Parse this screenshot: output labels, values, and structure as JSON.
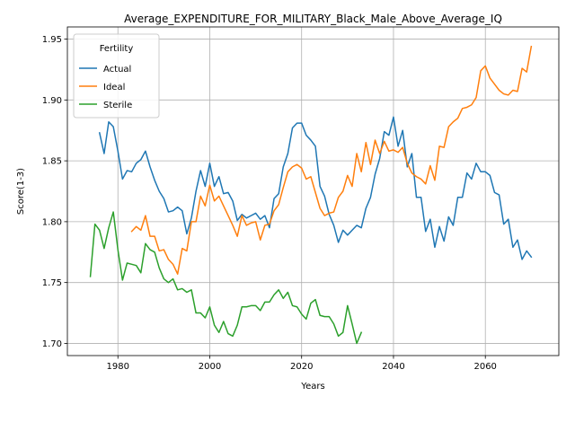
{
  "chart_data": {
    "type": "line",
    "title": "Average_EXPENDITURE_FOR_MILITARY_Black_Male_Above_Average_IQ",
    "xlabel": "Years",
    "ylabel": "Score(1-3)",
    "xlim": [
      1969,
      2076
    ],
    "ylim": [
      1.69,
      1.96
    ],
    "xticks": [
      1980,
      2000,
      2020,
      2040,
      2060
    ],
    "yticks": [
      1.7,
      1.75,
      1.8,
      1.85,
      1.9,
      1.95
    ],
    "ytick_labels": [
      "1.70",
      "1.75",
      "1.80",
      "1.85",
      "1.90",
      "1.95"
    ],
    "grid": true,
    "legend": {
      "title": "Fertility",
      "placement": "top-left"
    },
    "series": [
      {
        "name": "Actual",
        "color": "#1f77b4",
        "x": [
          1976,
          1977,
          1978,
          1979,
          1980,
          1981,
          1982,
          1983,
          1984,
          1985,
          1986,
          1987,
          1988,
          1989,
          1990,
          1991,
          1992,
          1993,
          1994,
          1995,
          1996,
          1997,
          1998,
          1999,
          2000,
          2001,
          2002,
          2003,
          2004,
          2005,
          2006,
          2007,
          2008,
          2009,
          2010,
          2011,
          2012,
          2013,
          2014,
          2015,
          2016,
          2017,
          2018,
          2019,
          2020,
          2021,
          2022,
          2023,
          2024,
          2025,
          2026,
          2027,
          2028,
          2029,
          2030,
          2031,
          2032,
          2033,
          2034,
          2035,
          2036,
          2037,
          2038,
          2039,
          2040,
          2041,
          2042,
          2043,
          2044,
          2045,
          2046,
          2047,
          2048,
          2049,
          2050,
          2051,
          2052,
          2053,
          2054,
          2055,
          2056,
          2057,
          2058,
          2059,
          2060,
          2061,
          2062,
          2063,
          2064,
          2065,
          2066,
          2067,
          2068,
          2069,
          2070
        ],
        "values": [
          1.873,
          1.856,
          1.882,
          1.878,
          1.858,
          1.835,
          1.842,
          1.841,
          1.848,
          1.851,
          1.858,
          1.845,
          1.834,
          1.825,
          1.819,
          1.808,
          1.809,
          1.812,
          1.809,
          1.79,
          1.803,
          1.825,
          1.842,
          1.829,
          1.848,
          1.829,
          1.837,
          1.823,
          1.824,
          1.817,
          1.801,
          1.806,
          1.803,
          1.805,
          1.807,
          1.802,
          1.805,
          1.795,
          1.819,
          1.823,
          1.845,
          1.856,
          1.877,
          1.881,
          1.881,
          1.871,
          1.867,
          1.862,
          1.829,
          1.821,
          1.806,
          1.797,
          1.783,
          1.793,
          1.789,
          1.793,
          1.797,
          1.795,
          1.811,
          1.82,
          1.839,
          1.852,
          1.874,
          1.871,
          1.886,
          1.862,
          1.875,
          1.845,
          1.856,
          1.82,
          1.82,
          1.792,
          1.802,
          1.779,
          1.796,
          1.784,
          1.804,
          1.797,
          1.82,
          1.82,
          1.84,
          1.835,
          1.848,
          1.841,
          1.841,
          1.838,
          1.824,
          1.822,
          1.798,
          1.802,
          1.779,
          1.785,
          1.769,
          1.776,
          1.771
        ]
      },
      {
        "name": "Ideal",
        "color": "#ff7f0e",
        "x": [
          1983,
          1984,
          1985,
          1986,
          1987,
          1988,
          1989,
          1990,
          1991,
          1992,
          1993,
          1994,
          1995,
          1996,
          1997,
          1998,
          1999,
          2000,
          2001,
          2002,
          2003,
          2004,
          2005,
          2006,
          2007,
          2008,
          2009,
          2010,
          2011,
          2012,
          2013,
          2014,
          2015,
          2016,
          2017,
          2018,
          2019,
          2020,
          2021,
          2022,
          2023,
          2024,
          2025,
          2026,
          2027,
          2028,
          2029,
          2030,
          2031,
          2032,
          2033,
          2034,
          2035,
          2036,
          2037,
          2038,
          2039,
          2040,
          2041,
          2042,
          2043,
          2044,
          2045,
          2046,
          2047,
          2048,
          2049,
          2050,
          2051,
          2052,
          2053,
          2054,
          2055,
          2056,
          2057,
          2058,
          2059,
          2060,
          2061,
          2062,
          2063,
          2064,
          2065,
          2066,
          2067,
          2068,
          2069,
          2070
        ],
        "values": [
          1.792,
          1.796,
          1.793,
          1.805,
          1.788,
          1.788,
          1.776,
          1.777,
          1.769,
          1.765,
          1.757,
          1.778,
          1.776,
          1.8,
          1.8,
          1.821,
          1.813,
          1.83,
          1.817,
          1.821,
          1.813,
          1.805,
          1.797,
          1.788,
          1.805,
          1.797,
          1.799,
          1.8,
          1.785,
          1.797,
          1.798,
          1.809,
          1.814,
          1.828,
          1.841,
          1.845,
          1.847,
          1.844,
          1.835,
          1.837,
          1.824,
          1.811,
          1.805,
          1.807,
          1.808,
          1.82,
          1.825,
          1.838,
          1.829,
          1.856,
          1.841,
          1.865,
          1.847,
          1.867,
          1.856,
          1.866,
          1.858,
          1.859,
          1.857,
          1.861,
          1.848,
          1.84,
          1.837,
          1.835,
          1.831,
          1.846,
          1.834,
          1.862,
          1.861,
          1.878,
          1.882,
          1.885,
          1.893,
          1.894,
          1.896,
          1.902,
          1.924,
          1.928,
          1.918,
          1.913,
          1.908,
          1.905,
          1.904,
          1.908,
          1.907,
          1.926,
          1.923,
          1.944
        ]
      },
      {
        "name": "Sterile",
        "color": "#2ca02c",
        "x": [
          1974,
          1975,
          1976,
          1977,
          1978,
          1979,
          1980,
          1981,
          1982,
          1983,
          1984,
          1985,
          1986,
          1987,
          1988,
          1989,
          1990,
          1991,
          1992,
          1993,
          1994,
          1995,
          1996,
          1997,
          1998,
          1999,
          2000,
          2001,
          2002,
          2003,
          2004,
          2005,
          2006,
          2007,
          2008,
          2009,
          2010,
          2011,
          2012,
          2013,
          2014,
          2015,
          2016,
          2017,
          2018,
          2019,
          2020,
          2021,
          2022,
          2023,
          2024,
          2025,
          2026,
          2027,
          2028,
          2029,
          2030,
          2031,
          2032,
          2033
        ],
        "values": [
          1.755,
          1.798,
          1.793,
          1.778,
          1.795,
          1.808,
          1.777,
          1.752,
          1.766,
          1.765,
          1.764,
          1.758,
          1.782,
          1.777,
          1.775,
          1.762,
          1.753,
          1.75,
          1.753,
          1.744,
          1.745,
          1.742,
          1.744,
          1.725,
          1.725,
          1.721,
          1.73,
          1.715,
          1.709,
          1.718,
          1.708,
          1.706,
          1.715,
          1.73,
          1.73,
          1.731,
          1.731,
          1.727,
          1.734,
          1.734,
          1.74,
          1.744,
          1.737,
          1.742,
          1.731,
          1.73,
          1.724,
          1.72,
          1.733,
          1.736,
          1.723,
          1.722,
          1.722,
          1.716,
          1.706,
          1.709,
          1.731,
          1.716,
          1.7,
          1.709
        ]
      }
    ]
  }
}
